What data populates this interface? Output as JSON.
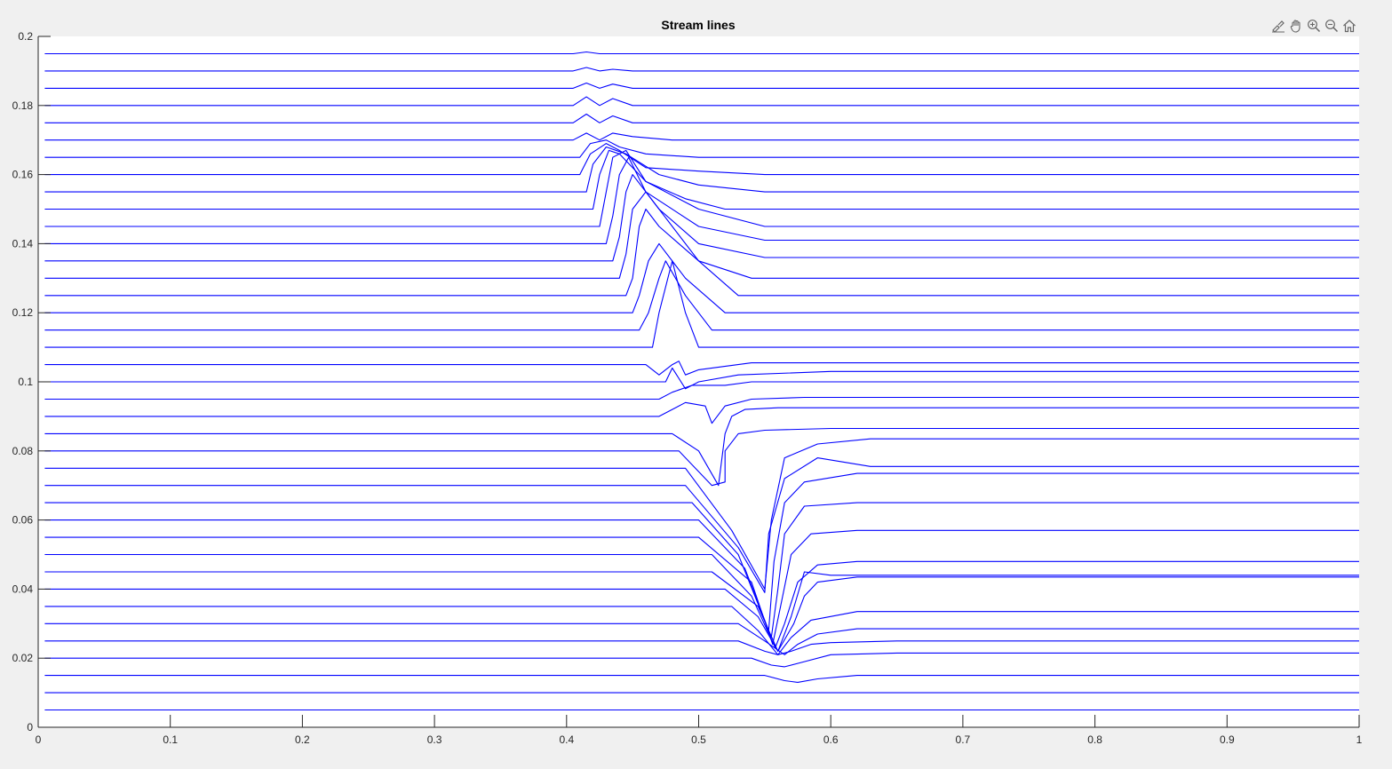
{
  "toolbar": {
    "icons": [
      "brush-icon",
      "pan-hand-icon",
      "zoom-in-icon",
      "zoom-out-icon",
      "home-icon"
    ]
  },
  "chart_data": {
    "type": "line",
    "title": "Stream lines",
    "xlabel": "",
    "ylabel": "",
    "xlim": [
      0,
      1
    ],
    "ylim": [
      0,
      0.2
    ],
    "xticks": [
      "0",
      "0.1",
      "0.2",
      "0.3",
      "0.4",
      "0.5",
      "0.6",
      "0.7",
      "0.8",
      "0.9",
      "1"
    ],
    "yticks": [
      "0",
      "0.02",
      "0.04",
      "0.06",
      "0.08",
      "0.1",
      "0.12",
      "0.14",
      "0.16",
      "0.18",
      "0.2"
    ],
    "grid": false,
    "line_color": "#0000ff",
    "series": [
      {
        "x": [
          0.005,
          1.0
        ],
        "y": [
          0.005,
          0.005
        ]
      },
      {
        "x": [
          0.005,
          1.0
        ],
        "y": [
          0.01,
          0.01
        ]
      },
      {
        "x": [
          0.005,
          0.55,
          0.565,
          0.575,
          0.59,
          0.62,
          1.0
        ],
        "y": [
          0.015,
          0.015,
          0.0135,
          0.013,
          0.014,
          0.015,
          0.015
        ]
      },
      {
        "x": [
          0.005,
          0.54,
          0.555,
          0.565,
          0.58,
          0.6,
          0.65,
          1.0
        ],
        "y": [
          0.02,
          0.02,
          0.018,
          0.0175,
          0.019,
          0.021,
          0.0215,
          0.0215
        ]
      },
      {
        "x": [
          0.005,
          0.53,
          0.55,
          0.56,
          0.57,
          0.585,
          0.6,
          0.65,
          1.0
        ],
        "y": [
          0.025,
          0.025,
          0.022,
          0.021,
          0.022,
          0.024,
          0.0245,
          0.025,
          0.025
        ]
      },
      {
        "x": [
          0.005,
          0.53,
          0.55,
          0.565,
          0.575,
          0.59,
          0.62,
          1.0
        ],
        "y": [
          0.03,
          0.03,
          0.025,
          0.021,
          0.024,
          0.027,
          0.0285,
          0.0285
        ]
      },
      {
        "x": [
          0.005,
          0.525,
          0.545,
          0.56,
          0.57,
          0.585,
          0.62,
          1.0
        ],
        "y": [
          0.035,
          0.035,
          0.028,
          0.021,
          0.026,
          0.031,
          0.0335,
          0.0335
        ]
      },
      {
        "x": [
          0.005,
          0.52,
          0.545,
          0.56,
          0.572,
          0.58,
          0.59,
          0.62,
          1.0
        ],
        "y": [
          0.04,
          0.04,
          0.032,
          0.022,
          0.03,
          0.038,
          0.042,
          0.0435,
          0.0435
        ]
      },
      {
        "x": [
          0.005,
          0.51,
          0.545,
          0.56,
          0.57,
          0.58,
          0.6,
          1.0
        ],
        "y": [
          0.045,
          0.045,
          0.035,
          0.022,
          0.032,
          0.045,
          0.044,
          0.044
        ]
      },
      {
        "x": [
          0.005,
          0.51,
          0.54,
          0.558,
          0.565,
          0.575,
          0.59,
          0.62,
          1.0
        ],
        "y": [
          0.05,
          0.05,
          0.038,
          0.023,
          0.03,
          0.042,
          0.047,
          0.048,
          0.048
        ]
      },
      {
        "x": [
          0.005,
          0.5,
          0.54,
          0.556,
          0.562,
          0.57,
          0.585,
          0.62,
          1.0
        ],
        "y": [
          0.055,
          0.055,
          0.042,
          0.024,
          0.035,
          0.05,
          0.056,
          0.057,
          0.057
        ]
      },
      {
        "x": [
          0.005,
          0.5,
          0.535,
          0.555,
          0.56,
          0.565,
          0.58,
          0.62,
          1.0
        ],
        "y": [
          0.06,
          0.06,
          0.046,
          0.026,
          0.04,
          0.056,
          0.064,
          0.065,
          0.065
        ]
      },
      {
        "x": [
          0.005,
          0.495,
          0.53,
          0.553,
          0.557,
          0.565,
          0.58,
          0.62,
          1.0
        ],
        "y": [
          0.065,
          0.065,
          0.05,
          0.028,
          0.048,
          0.065,
          0.071,
          0.0735,
          0.0735
        ]
      },
      {
        "x": [
          0.005,
          0.49,
          0.53,
          0.55,
          0.553,
          0.565,
          0.59,
          0.63,
          1.0
        ],
        "y": [
          0.07,
          0.07,
          0.052,
          0.039,
          0.056,
          0.072,
          0.078,
          0.0755,
          0.0755
        ]
      },
      {
        "x": [
          0.005,
          0.49,
          0.525,
          0.55,
          0.555,
          0.565,
          0.59,
          0.63,
          1.0
        ],
        "y": [
          0.075,
          0.075,
          0.057,
          0.04,
          0.06,
          0.078,
          0.082,
          0.0835,
          0.0835
        ]
      },
      {
        "x": [
          0.005,
          0.485,
          0.51,
          0.52,
          0.52,
          0.53,
          0.55,
          0.6,
          1.0
        ],
        "y": [
          0.08,
          0.08,
          0.07,
          0.071,
          0.08,
          0.085,
          0.086,
          0.0865,
          0.0865
        ]
      },
      {
        "x": [
          0.005,
          0.48,
          0.5,
          0.515,
          0.52,
          0.525,
          0.535,
          0.56,
          0.6,
          1.0
        ],
        "y": [
          0.085,
          0.085,
          0.08,
          0.07,
          0.085,
          0.09,
          0.092,
          0.0925,
          0.0925,
          0.0925
        ]
      },
      {
        "x": [
          0.005,
          0.47,
          0.49,
          0.505,
          0.51,
          0.52,
          0.54,
          0.58,
          1.0
        ],
        "y": [
          0.09,
          0.09,
          0.094,
          0.093,
          0.088,
          0.093,
          0.095,
          0.0955,
          0.0955
        ]
      },
      {
        "x": [
          0.005,
          0.47,
          0.48,
          0.495,
          0.52,
          0.54,
          0.58,
          1.0
        ],
        "y": [
          0.095,
          0.095,
          0.097,
          0.099,
          0.099,
          0.1,
          0.1,
          0.1
        ]
      },
      {
        "x": [
          0.005,
          0.46,
          0.475,
          0.48,
          0.49,
          0.5,
          0.53,
          0.6,
          1.0
        ],
        "y": [
          0.1,
          0.1,
          0.1,
          0.104,
          0.098,
          0.1,
          0.102,
          0.103,
          0.103
        ]
      },
      {
        "x": [
          0.005,
          0.46,
          0.47,
          0.48,
          0.485,
          0.49,
          0.5,
          0.54,
          1.0
        ],
        "y": [
          0.105,
          0.105,
          0.102,
          0.105,
          0.106,
          0.102,
          0.1035,
          0.1055,
          0.1055
        ]
      },
      {
        "x": [
          0.005,
          0.455,
          0.465,
          0.47,
          0.48,
          0.49,
          0.5,
          0.55,
          1.0
        ],
        "y": [
          0.11,
          0.11,
          0.11,
          0.12,
          0.135,
          0.12,
          0.11,
          0.11,
          0.11
        ]
      },
      {
        "x": [
          0.005,
          0.455,
          0.462,
          0.47,
          0.475,
          0.49,
          0.51,
          0.55,
          1.0
        ],
        "y": [
          0.115,
          0.115,
          0.12,
          0.13,
          0.135,
          0.125,
          0.115,
          0.115,
          0.115
        ]
      },
      {
        "x": [
          0.005,
          0.45,
          0.455,
          0.462,
          0.47,
          0.49,
          0.52,
          0.56,
          1.0
        ],
        "y": [
          0.12,
          0.12,
          0.125,
          0.135,
          0.14,
          0.13,
          0.12,
          0.12,
          0.12
        ]
      },
      {
        "x": [
          0.005,
          0.445,
          0.45,
          0.455,
          0.46,
          0.47,
          0.5,
          0.53,
          0.57,
          1.0
        ],
        "y": [
          0.125,
          0.125,
          0.13,
          0.145,
          0.15,
          0.145,
          0.135,
          0.125,
          0.125,
          0.125
        ]
      },
      {
        "x": [
          0.005,
          0.44,
          0.445,
          0.45,
          0.46,
          0.48,
          0.5,
          0.54,
          0.6,
          1.0
        ],
        "y": [
          0.13,
          0.13,
          0.137,
          0.15,
          0.155,
          0.145,
          0.135,
          0.13,
          0.13,
          0.13
        ]
      },
      {
        "x": [
          0.005,
          0.435,
          0.44,
          0.445,
          0.45,
          0.47,
          0.5,
          0.55,
          1.0
        ],
        "y": [
          0.135,
          0.135,
          0.142,
          0.155,
          0.16,
          0.15,
          0.14,
          0.136,
          0.136
        ]
      },
      {
        "x": [
          0.005,
          0.43,
          0.435,
          0.44,
          0.447,
          0.46,
          0.5,
          0.55,
          1.0
        ],
        "y": [
          0.14,
          0.14,
          0.148,
          0.16,
          0.165,
          0.155,
          0.145,
          0.141,
          0.141
        ]
      },
      {
        "x": [
          0.005,
          0.425,
          0.43,
          0.435,
          0.445,
          0.46,
          0.5,
          0.55,
          1.0
        ],
        "y": [
          0.145,
          0.145,
          0.155,
          0.165,
          0.167,
          0.158,
          0.15,
          0.145,
          0.145
        ]
      },
      {
        "x": [
          0.005,
          0.42,
          0.425,
          0.432,
          0.44,
          0.46,
          0.49,
          0.52,
          0.6,
          1.0
        ],
        "y": [
          0.15,
          0.15,
          0.16,
          0.167,
          0.166,
          0.158,
          0.153,
          0.15,
          0.15,
          0.15
        ]
      },
      {
        "x": [
          0.005,
          0.415,
          0.42,
          0.43,
          0.445,
          0.47,
          0.5,
          0.55,
          1.0
        ],
        "y": [
          0.155,
          0.155,
          0.163,
          0.168,
          0.166,
          0.16,
          0.157,
          0.155,
          0.155
        ]
      },
      {
        "x": [
          0.005,
          0.41,
          0.418,
          0.43,
          0.44,
          0.46,
          0.5,
          0.55,
          1.0
        ],
        "y": [
          0.16,
          0.16,
          0.166,
          0.169,
          0.167,
          0.162,
          0.161,
          0.16,
          0.16
        ]
      },
      {
        "x": [
          0.005,
          0.41,
          0.418,
          0.43,
          0.44,
          0.46,
          0.5,
          0.55,
          1.0
        ],
        "y": [
          0.165,
          0.165,
          0.169,
          0.17,
          0.168,
          0.166,
          0.165,
          0.165,
          0.165
        ]
      },
      {
        "x": [
          0.005,
          0.405,
          0.415,
          0.425,
          0.435,
          0.45,
          0.48,
          1.0
        ],
        "y": [
          0.17,
          0.17,
          0.172,
          0.17,
          0.172,
          0.171,
          0.17,
          0.17
        ]
      },
      {
        "x": [
          0.005,
          0.405,
          0.415,
          0.425,
          0.435,
          0.45,
          1.0
        ],
        "y": [
          0.175,
          0.175,
          0.1775,
          0.175,
          0.177,
          0.175,
          0.175
        ]
      },
      {
        "x": [
          0.005,
          0.405,
          0.415,
          0.425,
          0.435,
          0.45,
          1.0
        ],
        "y": [
          0.18,
          0.18,
          0.1825,
          0.18,
          0.182,
          0.18,
          0.18
        ]
      },
      {
        "x": [
          0.005,
          0.405,
          0.415,
          0.425,
          0.435,
          0.45,
          1.0
        ],
        "y": [
          0.185,
          0.185,
          0.1865,
          0.185,
          0.1862,
          0.185,
          0.185
        ]
      },
      {
        "x": [
          0.005,
          0.405,
          0.415,
          0.425,
          0.435,
          0.45,
          1.0
        ],
        "y": [
          0.19,
          0.19,
          0.191,
          0.19,
          0.1905,
          0.19,
          0.19
        ]
      },
      {
        "x": [
          0.005,
          0.405,
          0.415,
          0.425,
          1.0
        ],
        "y": [
          0.195,
          0.195,
          0.1955,
          0.195,
          0.195
        ]
      }
    ]
  }
}
